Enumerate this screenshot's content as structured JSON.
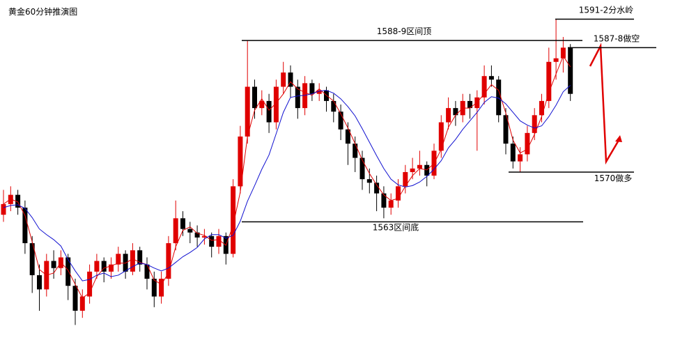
{
  "chart_data": {
    "type": "candlestick",
    "title": "黄金60分钟推演图",
    "ylim": [
      1545.4,
      1594.2
    ],
    "up_color": "#e00000",
    "down_color": "#000000",
    "ohlc": [
      [
        1564,
        1567.5,
        1563,
        1565.5
      ],
      [
        1565.5,
        1568,
        1564.5,
        1566.8
      ],
      [
        1566.8,
        1567.5,
        1564,
        1565
      ],
      [
        1565,
        1566,
        1558.5,
        1560
      ],
      [
        1560,
        1561,
        1553,
        1555.5
      ],
      [
        1555.5,
        1557,
        1550.5,
        1553.5
      ],
      [
        1553.5,
        1558.5,
        1552.5,
        1557.5
      ],
      [
        1557.5,
        1559,
        1555,
        1556.5
      ],
      [
        1556.5,
        1559,
        1555.5,
        1558
      ],
      [
        1558,
        1558.5,
        1552,
        1554
      ],
      [
        1554,
        1555,
        1548.5,
        1550.5
      ],
      [
        1550.5,
        1553.5,
        1549.5,
        1552.5
      ],
      [
        1552.5,
        1557,
        1551.5,
        1556
      ],
      [
        1556,
        1558.5,
        1555,
        1557.5
      ],
      [
        1557.5,
        1558,
        1554.5,
        1556
      ],
      [
        1556,
        1558,
        1555,
        1557
      ],
      [
        1557,
        1559.5,
        1556,
        1558.5
      ],
      [
        1558.5,
        1559,
        1555,
        1556
      ],
      [
        1556,
        1560,
        1555.5,
        1559
      ],
      [
        1559,
        1559.5,
        1556,
        1557
      ],
      [
        1557,
        1558,
        1553.5,
        1555
      ],
      [
        1555,
        1556,
        1551,
        1552.5
      ],
      [
        1552.5,
        1556,
        1551.5,
        1555
      ],
      [
        1555,
        1561,
        1554,
        1560
      ],
      [
        1560,
        1566,
        1559,
        1563.5
      ],
      [
        1563.5,
        1564.5,
        1561,
        1562
      ],
      [
        1562,
        1563,
        1560,
        1561.5
      ],
      [
        1561.5,
        1562.5,
        1559.5,
        1560.8
      ],
      [
        1560.8,
        1562,
        1559.8,
        1561
      ],
      [
        1561,
        1561.5,
        1558,
        1559.5
      ],
      [
        1559.5,
        1562,
        1558.5,
        1561
      ],
      [
        1561,
        1561.5,
        1557,
        1558.5
      ],
      [
        1558.5,
        1569,
        1558,
        1568
      ],
      [
        1568,
        1576.5,
        1567,
        1575
      ],
      [
        1575,
        1588.5,
        1574,
        1582
      ],
      [
        1582,
        1583,
        1577.5,
        1579
      ],
      [
        1579,
        1581.5,
        1578,
        1580
      ],
      [
        1580,
        1581,
        1575.5,
        1577
      ],
      [
        1577,
        1583,
        1576,
        1582
      ],
      [
        1582,
        1585.5,
        1581,
        1584
      ],
      [
        1584,
        1585,
        1580.5,
        1582
      ],
      [
        1582,
        1583,
        1577.5,
        1579
      ],
      [
        1579,
        1583.5,
        1578,
        1582.5
      ],
      [
        1582.5,
        1583,
        1580,
        1581
      ],
      [
        1581,
        1582.5,
        1580,
        1581.5
      ],
      [
        1581.5,
        1582,
        1578.5,
        1580
      ],
      [
        1580,
        1581,
        1577,
        1578.5
      ],
      [
        1578.5,
        1579.5,
        1574.5,
        1576
      ],
      [
        1576,
        1577,
        1571,
        1574
      ],
      [
        1574,
        1575,
        1570,
        1572
      ],
      [
        1572,
        1573,
        1567.5,
        1569
      ],
      [
        1569,
        1570.5,
        1567,
        1568.5
      ],
      [
        1568.5,
        1569.5,
        1564.5,
        1567
      ],
      [
        1567,
        1568,
        1563.5,
        1565
      ],
      [
        1565,
        1567,
        1564,
        1566
      ],
      [
        1566,
        1569,
        1565,
        1568
      ],
      [
        1568,
        1571,
        1567,
        1570
      ],
      [
        1570,
        1572,
        1569,
        1570.5
      ],
      [
        1570.5,
        1573,
        1569.5,
        1571
      ],
      [
        1571,
        1571.5,
        1568,
        1569.5
      ],
      [
        1569.5,
        1574,
        1569,
        1573
      ],
      [
        1573,
        1578,
        1572,
        1577
      ],
      [
        1577,
        1580.5,
        1576,
        1579
      ],
      [
        1579,
        1580,
        1576.5,
        1578
      ],
      [
        1578,
        1581,
        1577,
        1580
      ],
      [
        1580,
        1581,
        1577.5,
        1579
      ],
      [
        1579,
        1581.5,
        1573,
        1580.5
      ],
      [
        1580.5,
        1585,
        1579.5,
        1583.5
      ],
      [
        1583.5,
        1585,
        1582,
        1583
      ],
      [
        1583,
        1583.5,
        1577,
        1578
      ],
      [
        1578,
        1579,
        1572.5,
        1574
      ],
      [
        1574,
        1575,
        1570.5,
        1571.5
      ],
      [
        1571.5,
        1573.5,
        1570,
        1572.5
      ],
      [
        1572.5,
        1576.5,
        1571.5,
        1575.5
      ],
      [
        1575.5,
        1579,
        1574.5,
        1578
      ],
      [
        1578,
        1581,
        1577,
        1580
      ],
      [
        1580,
        1587.5,
        1579,
        1585.5
      ],
      [
        1585.5,
        1591.5,
        1583,
        1586
      ],
      [
        1586,
        1589,
        1584,
        1587.5
      ],
      [
        1587.5,
        1588,
        1580,
        1581
      ]
    ],
    "lines": [
      {
        "color": "#e00000",
        "values": [
          1565.5,
          1566.2,
          1565.8,
          1563.9,
          1560.2,
          1556.3,
          1555.5,
          1555.8,
          1557.3,
          1556.2,
          1554.2,
          1552.3,
          1553,
          1555.3,
          1556.5,
          1556.8,
          1557.2,
          1557.2,
          1557.8,
          1557.3,
          1557,
          1554.8,
          1554.2,
          1555.8,
          1559.5,
          1561.8,
          1562.3,
          1561.4,
          1561.1,
          1560.4,
          1560.5,
          1559.7,
          1562.5,
          1567.2,
          1575,
          1578.7,
          1580.3,
          1578.7,
          1579.7,
          1581,
          1582.7,
          1581.7,
          1581.2,
          1580.8,
          1581.7,
          1580.8,
          1580,
          1578.2,
          1576.2,
          1574,
          1571.7,
          1569.8,
          1568.2,
          1566.8,
          1566,
          1566.3,
          1568,
          1569.5,
          1570.5,
          1570.3,
          1571.2,
          1573.2,
          1576.3,
          1578,
          1579,
          1579,
          1579.8,
          1581,
          1582.3,
          1581.5,
          1578.3,
          1574.5,
          1572.7,
          1573.2,
          1575.3,
          1577.8,
          1581.2,
          1583.8,
          1586.3,
          1584.8
        ]
      },
      {
        "color": "#1010d0",
        "values": [
          1565,
          1565.3,
          1565.4,
          1564.9,
          1563.6,
          1562,
          1561.2,
          1560.5,
          1559.6,
          1557.7,
          1556.1,
          1554.7,
          1554.9,
          1555.5,
          1555.8,
          1555.3,
          1555.5,
          1556.1,
          1556.7,
          1557.2,
          1557,
          1556.5,
          1556.1,
          1556.5,
          1557.3,
          1558.1,
          1558.7,
          1559.4,
          1560.6,
          1561.2,
          1561.2,
          1560.7,
          1561.1,
          1563.1,
          1565.9,
          1568.1,
          1570.4,
          1572.4,
          1575.4,
          1578.4,
          1580.5,
          1580.7,
          1580.8,
          1581,
          1581.4,
          1581.5,
          1581.1,
          1580.3,
          1579.2,
          1577.9,
          1576.1,
          1574.2,
          1572.3,
          1570.5,
          1569,
          1568.2,
          1567.9,
          1568.1,
          1568.6,
          1569.4,
          1570.4,
          1571.6,
          1573.4,
          1574.6,
          1576,
          1577.2,
          1578.4,
          1579.8,
          1580.6,
          1580.4,
          1579.6,
          1578.4,
          1577.2,
          1576.6,
          1576.2,
          1576.5,
          1577.8,
          1579.4,
          1581.3,
          1582.2
        ]
      }
    ],
    "levels": [
      {
        "value": 1588.5,
        "label": "1588-9区间顶"
      },
      {
        "value": 1591.5,
        "label": "1591-2分水岭"
      },
      {
        "value": 1587.5,
        "label": "1587-8做空"
      },
      {
        "value": 1570,
        "label": "1570做多"
      },
      {
        "value": 1563,
        "label": "1563区间底"
      }
    ]
  }
}
